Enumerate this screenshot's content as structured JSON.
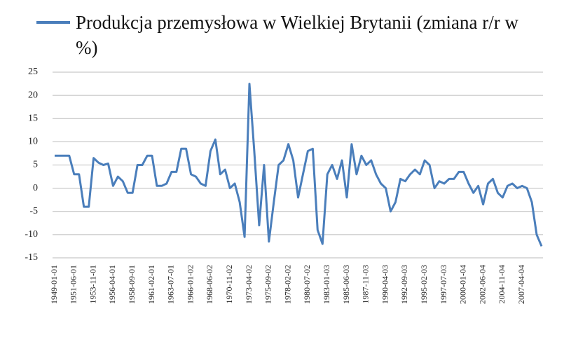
{
  "chart_data": {
    "type": "line",
    "categories": [
      "1949-01-01",
      null,
      null,
      null,
      "1951-06-01",
      null,
      null,
      null,
      "1953-11-01",
      null,
      null,
      null,
      "1956-04-01",
      null,
      null,
      null,
      "1958-09-01",
      null,
      null,
      null,
      "1961-02-01",
      null,
      null,
      null,
      "1963-07-01",
      null,
      null,
      null,
      "1966-01-02",
      null,
      null,
      null,
      "1968-06-02",
      null,
      null,
      null,
      "1970-11-02",
      null,
      null,
      null,
      "1973-04-02",
      null,
      null,
      null,
      "1975-09-02",
      null,
      null,
      null,
      "1978-02-02",
      null,
      null,
      null,
      "1980-07-02",
      null,
      null,
      null,
      "1983-01-03",
      null,
      null,
      null,
      "1985-06-03",
      null,
      null,
      null,
      "1987-11-03",
      null,
      null,
      null,
      "1990-04-03",
      null,
      null,
      null,
      "1992-09-03",
      null,
      null,
      null,
      "1995-02-03",
      null,
      null,
      null,
      "1997-07-03",
      null,
      null,
      null,
      "2000-01-04",
      null,
      null,
      null,
      "2002-06-04",
      null,
      null,
      null,
      "2004-11-04",
      null,
      null,
      null,
      "2007-04-04",
      null,
      null,
      null,
      null
    ],
    "series": [
      {
        "name": "Produkcja przemysłowa w Wielkiej Brytanii (zmiana r/r w %)",
        "color": "#4a7ebb",
        "values": [
          7,
          7,
          7,
          7,
          3,
          3,
          -4,
          -4,
          6.5,
          5.5,
          5,
          5.3,
          0.5,
          2.5,
          1.5,
          -1,
          -1,
          5,
          5,
          7,
          7,
          0.5,
          0.5,
          1,
          3.5,
          3.5,
          8.5,
          8.5,
          3,
          2.5,
          1,
          0.5,
          8,
          10.5,
          3,
          4,
          0,
          1,
          -3,
          -10.5,
          22.5,
          8,
          -8,
          5,
          -11.5,
          -3,
          5,
          6,
          9.5,
          6,
          -2,
          3,
          8,
          8.5,
          -9,
          -12,
          3,
          5,
          2,
          6,
          -2,
          9.5,
          3,
          7,
          5,
          6,
          3,
          1,
          0,
          -5,
          -3,
          2,
          1.5,
          3,
          4,
          3,
          6,
          5,
          0,
          1.5,
          1,
          2,
          2,
          3.5,
          3.5,
          1,
          -1,
          0.5,
          -3.5,
          1,
          2,
          -1,
          -2,
          0.5,
          1,
          0,
          0.5,
          0,
          -3,
          -10,
          -12.5
        ]
      }
    ],
    "ylim": [
      -15,
      25
    ],
    "yticks": [
      -15,
      -10,
      -5,
      0,
      5,
      10,
      15,
      20,
      25
    ],
    "grid": true
  }
}
